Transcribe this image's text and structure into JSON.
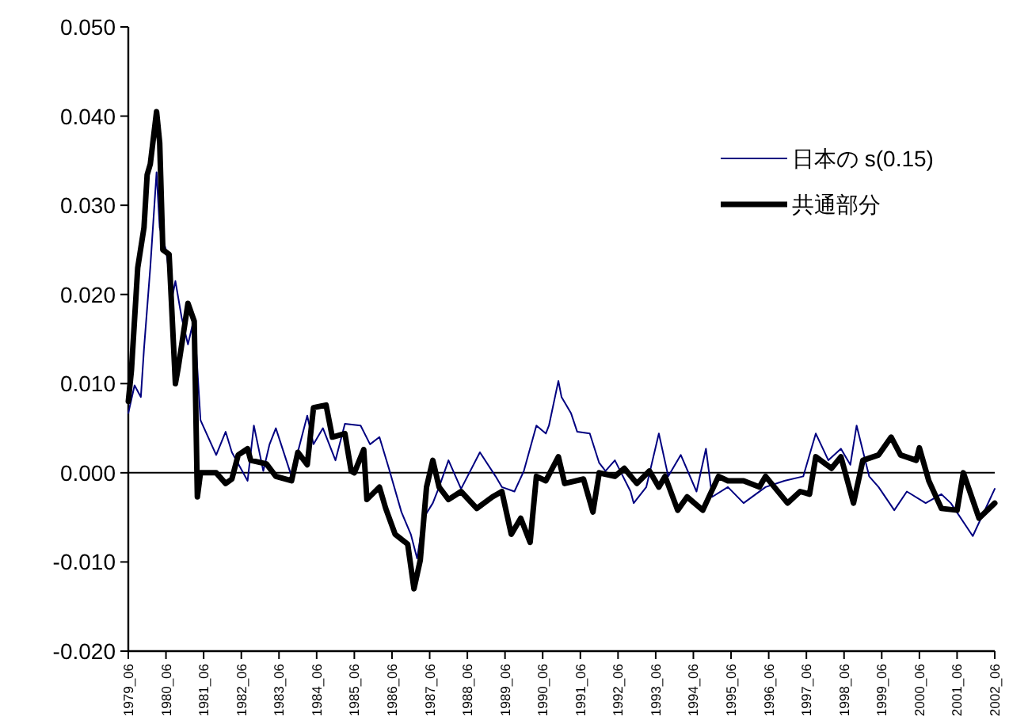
{
  "chart_data": {
    "type": "line",
    "xlim": [
      "1979-06",
      "2002-06"
    ],
    "xticks": [
      {
        "value": "1979-06",
        "label": "1979_06"
      },
      {
        "value": "1980-06",
        "label": "1980_06"
      },
      {
        "value": "1981-06",
        "label": "1981_06"
      },
      {
        "value": "1982-06",
        "label": "1982_06"
      },
      {
        "value": "1983-06",
        "label": "1983_06"
      },
      {
        "value": "1984-06",
        "label": "1984_06"
      },
      {
        "value": "1985-06",
        "label": "1985_06"
      },
      {
        "value": "1986-06",
        "label": "1986_06"
      },
      {
        "value": "1987-06",
        "label": "1987_06"
      },
      {
        "value": "1988-06",
        "label": "1988_06"
      },
      {
        "value": "1989-06",
        "label": "1989_06"
      },
      {
        "value": "1990-06",
        "label": "1990_06"
      },
      {
        "value": "1991-06",
        "label": "1991_06"
      },
      {
        "value": "1992-06",
        "label": "1992_06"
      },
      {
        "value": "1993-06",
        "label": "1993_06"
      },
      {
        "value": "1994-06",
        "label": "1994_06"
      },
      {
        "value": "1995-06",
        "label": "1995_06"
      },
      {
        "value": "1996-06",
        "label": "1996_06"
      },
      {
        "value": "1997-06",
        "label": "1997_06"
      },
      {
        "value": "1998-06",
        "label": "1998_06"
      },
      {
        "value": "1999-06",
        "label": "1999_06"
      },
      {
        "value": "2000-06",
        "label": "2000_06"
      },
      {
        "value": "2001-06",
        "label": "2001_06"
      },
      {
        "value": "2002-06",
        "label": "2002_06"
      }
    ],
    "ylim": [
      -0.02,
      0.05
    ],
    "yticks": [
      {
        "value": -0.02,
        "label": "-0.020"
      },
      {
        "value": -0.01,
        "label": "-0.010"
      },
      {
        "value": 0,
        "label": "0.000"
      },
      {
        "value": 0.01,
        "label": "0.010"
      },
      {
        "value": 0.02,
        "label": "0.020"
      },
      {
        "value": 0.03,
        "label": "0.030"
      },
      {
        "value": 0.04,
        "label": "0.040"
      },
      {
        "value": 0.05,
        "label": "0.050"
      }
    ],
    "ref_lines": [
      {
        "axis": "y",
        "value": 0,
        "color": "#000000"
      }
    ],
    "grid": false,
    "legend": "top right",
    "marker": "none",
    "line_style": "solid",
    "series": [
      {
        "name": "日本の s(0.15)",
        "color": "#000080",
        "x": [
          "1979-06",
          "1979-08",
          "1979-10",
          "1979-11",
          "1980-01",
          "1980-03",
          "1980-04",
          "1980-06",
          "1980-08",
          "1980-09",
          "1980-11",
          "1981-01",
          "1981-03",
          "1981-05",
          "1981-10",
          "1982-01",
          "1982-03",
          "1982-08",
          "1982-10",
          "1983-01",
          "1983-03",
          "1983-05",
          "1983-10",
          "1984-03",
          "1984-05",
          "1984-08",
          "1984-12",
          "1985-03",
          "1985-08",
          "1985-11",
          "1986-02",
          "1986-05",
          "1986-09",
          "1986-12",
          "1987-02",
          "1987-04",
          "1987-07",
          "1987-09",
          "1987-12",
          "1988-04",
          "1988-10",
          "1989-03",
          "1989-05",
          "1989-09",
          "1989-12",
          "1990-04",
          "1990-07",
          "1990-08",
          "1990-11",
          "1990-12",
          "1991-03",
          "1991-05",
          "1991-09",
          "1991-12",
          "1992-02",
          "1992-05",
          "1992-10",
          "1992-11",
          "1993-03",
          "1993-07",
          "1993-10",
          "1994-02",
          "1994-07",
          "1994-10",
          "1994-12",
          "1995-05",
          "1995-10",
          "1996-05",
          "1996-11",
          "1997-05",
          "1997-09",
          "1998-01",
          "1998-05",
          "1998-08",
          "1998-10",
          "1999-02",
          "1999-05",
          "1999-10",
          "2000-02",
          "2000-08",
          "2001-01",
          "2001-04",
          "2001-11",
          "2002-06"
        ],
        "values": [
          0.0067,
          0.0098,
          0.0085,
          0.0139,
          0.023,
          0.0337,
          0.0275,
          0.025,
          0.0197,
          0.0215,
          0.0174,
          0.0144,
          0.0174,
          0.0059,
          0.002,
          0.0046,
          0.0023,
          -0.0009,
          0.0053,
          0.0002,
          0.0032,
          0.005,
          -0.0004,
          0.0064,
          0.0032,
          0.005,
          0.0014,
          0.0055,
          0.0053,
          0.0032,
          0.004,
          0.0005,
          -0.0044,
          -0.0069,
          -0.0096,
          -0.0051,
          -0.0034,
          -0.0016,
          0.0014,
          -0.0018,
          0.0023,
          -0.0004,
          -0.0016,
          -0.0021,
          0.0002,
          0.0053,
          0.0044,
          0.0053,
          0.0103,
          0.0085,
          0.0067,
          0.0046,
          0.0044,
          0.0011,
          0.0002,
          0.0014,
          -0.0021,
          -0.0034,
          -0.0016,
          0.0044,
          -0.0004,
          0.002,
          -0.0021,
          0.0027,
          -0.0027,
          -0.0016,
          -0.0034,
          -0.0016,
          -0.0009,
          -0.0004,
          0.0044,
          0.0014,
          0.0027,
          0.0009,
          0.0053,
          -0.0004,
          -0.0016,
          -0.0042,
          -0.0021,
          -0.0034,
          -0.0024,
          -0.0034,
          -0.0071,
          -0.0018
        ]
      },
      {
        "name": "共通部分",
        "color": "#000000",
        "x": [
          "1979-06",
          "1979-07",
          "1979-09",
          "1979-11",
          "1979-12",
          "1980-01",
          "1980-03",
          "1980-04",
          "1980-05",
          "1980-07",
          "1980-09",
          "1980-10",
          "1981-01",
          "1981-03",
          "1981-04",
          "1981-05",
          "1981-10",
          "1982-01",
          "1982-03",
          "1982-05",
          "1982-08",
          "1982-09",
          "1983-02",
          "1983-05",
          "1983-10",
          "1983-12",
          "1984-03",
          "1984-05",
          "1984-09",
          "1984-11",
          "1985-03",
          "1985-05",
          "1985-06",
          "1985-09",
          "1985-10",
          "1986-02",
          "1986-04",
          "1986-07",
          "1986-11",
          "1987-01",
          "1987-03",
          "1987-05",
          "1987-07",
          "1987-09",
          "1987-12",
          "1988-04",
          "1988-09",
          "1989-02",
          "1989-05",
          "1989-08",
          "1989-11",
          "1990-02",
          "1990-04",
          "1990-07",
          "1990-11",
          "1991-01",
          "1991-07",
          "1991-10",
          "1991-12",
          "1992-05",
          "1992-08",
          "1992-12",
          "1993-04",
          "1993-07",
          "1993-09",
          "1994-01",
          "1994-04",
          "1994-09",
          "1995-02",
          "1995-05",
          "1995-10",
          "1996-03",
          "1996-05",
          "1996-12",
          "1997-04",
          "1997-07",
          "1997-09",
          "1998-02",
          "1998-05",
          "1998-09",
          "1998-12",
          "1999-05",
          "1999-09",
          "1999-12",
          "2000-05",
          "2000-06",
          "2000-09",
          "2001-01",
          "2001-06",
          "2001-08",
          "2002-01",
          "2002-06"
        ],
        "values": [
          0.008,
          0.0115,
          0.023,
          0.0275,
          0.0334,
          0.0346,
          0.0405,
          0.037,
          0.025,
          0.0245,
          0.01,
          0.012,
          0.019,
          0.017,
          -0.0027,
          0,
          0,
          -0.0012,
          -0.0007,
          0.002,
          0.0027,
          0.0014,
          0.001,
          -0.0004,
          -0.0009,
          0.0023,
          0.0009,
          0.0073,
          0.0076,
          0.004,
          0.0044,
          0.0002,
          0,
          0.0026,
          -0.003,
          -0.0016,
          -0.004,
          -0.0069,
          -0.008,
          -0.013,
          -0.0098,
          -0.0016,
          0.0014,
          -0.0016,
          -0.003,
          -0.0021,
          -0.004,
          -0.0027,
          -0.0021,
          -0.0069,
          -0.0051,
          -0.0078,
          -0.0004,
          -0.0009,
          0.0018,
          -0.0012,
          -0.0007,
          -0.0044,
          0,
          -0.0004,
          0.0005,
          -0.0012,
          0.0002,
          -0.0016,
          -0.0004,
          -0.0042,
          -0.0027,
          -0.0042,
          -0.0004,
          -0.0009,
          -0.0009,
          -0.0016,
          -0.0004,
          -0.0034,
          -0.0021,
          -0.0024,
          0.0018,
          0.0005,
          0.0018,
          -0.0034,
          0.0014,
          0.002,
          0.004,
          0.002,
          0.0014,
          0.0028,
          -0.0009,
          -0.004,
          -0.0042,
          0,
          -0.0051,
          -0.0034
        ]
      }
    ]
  }
}
